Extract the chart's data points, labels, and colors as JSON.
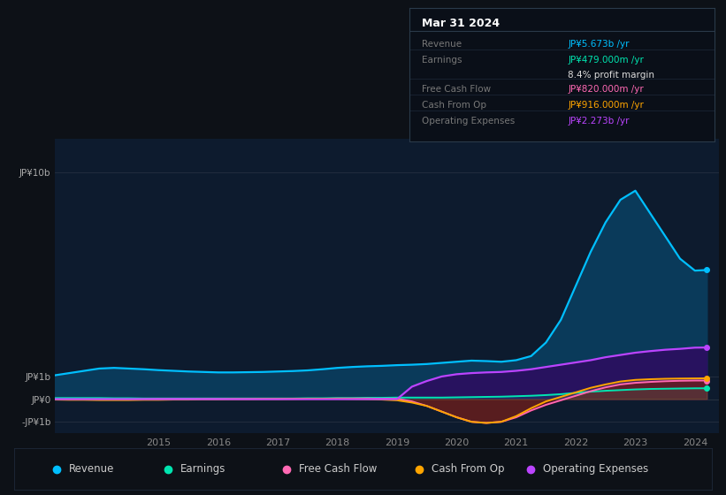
{
  "bg_color": "#0d1117",
  "plot_bg_color": "#0d1b2e",
  "x_years": [
    2013.25,
    2013.5,
    2013.75,
    2014,
    2014.25,
    2014.5,
    2014.75,
    2015,
    2015.25,
    2015.5,
    2015.75,
    2016,
    2016.25,
    2016.5,
    2016.75,
    2017,
    2017.25,
    2017.5,
    2017.75,
    2018,
    2018.25,
    2018.5,
    2018.75,
    2019,
    2019.25,
    2019.5,
    2019.75,
    2020,
    2020.25,
    2020.5,
    2020.75,
    2021,
    2021.25,
    2021.5,
    2021.75,
    2022,
    2022.25,
    2022.5,
    2022.75,
    2023,
    2023.25,
    2023.5,
    2023.75,
    2024,
    2024.2
  ],
  "revenue": [
    1.05,
    1.15,
    1.25,
    1.35,
    1.38,
    1.35,
    1.32,
    1.28,
    1.25,
    1.22,
    1.2,
    1.18,
    1.18,
    1.19,
    1.2,
    1.22,
    1.24,
    1.27,
    1.32,
    1.38,
    1.42,
    1.45,
    1.47,
    1.5,
    1.52,
    1.55,
    1.6,
    1.65,
    1.7,
    1.68,
    1.65,
    1.72,
    1.9,
    2.5,
    3.5,
    5.0,
    6.5,
    7.8,
    8.8,
    9.2,
    8.2,
    7.2,
    6.2,
    5.673,
    5.7
  ],
  "earnings": [
    0.05,
    0.05,
    0.05,
    0.05,
    0.04,
    0.04,
    0.03,
    0.03,
    0.03,
    0.03,
    0.03,
    0.03,
    0.03,
    0.03,
    0.03,
    0.03,
    0.03,
    0.04,
    0.04,
    0.05,
    0.05,
    0.06,
    0.06,
    0.07,
    0.07,
    0.07,
    0.07,
    0.08,
    0.09,
    0.1,
    0.11,
    0.13,
    0.15,
    0.18,
    0.22,
    0.28,
    0.33,
    0.37,
    0.4,
    0.43,
    0.45,
    0.46,
    0.47,
    0.479,
    0.48
  ],
  "free_cash_flow": [
    -0.01,
    -0.01,
    -0.01,
    -0.01,
    -0.01,
    -0.01,
    0.0,
    0.01,
    0.01,
    0.01,
    0.01,
    0.01,
    0.01,
    0.01,
    0.01,
    0.01,
    0.02,
    0.02,
    0.02,
    0.03,
    0.03,
    0.03,
    0.02,
    0.02,
    -0.1,
    -0.3,
    -0.55,
    -0.8,
    -1.0,
    -1.05,
    -1.0,
    -0.8,
    -0.5,
    -0.25,
    -0.05,
    0.15,
    0.35,
    0.52,
    0.65,
    0.72,
    0.76,
    0.79,
    0.81,
    0.82,
    0.82
  ],
  "cash_from_op": [
    -0.02,
    -0.03,
    -0.03,
    -0.04,
    -0.04,
    -0.04,
    -0.03,
    -0.03,
    -0.02,
    -0.02,
    -0.01,
    -0.01,
    0.0,
    0.0,
    0.01,
    0.01,
    0.01,
    0.02,
    0.02,
    0.02,
    0.01,
    0.0,
    -0.02,
    -0.05,
    -0.15,
    -0.3,
    -0.55,
    -0.8,
    -1.0,
    -1.05,
    -1.0,
    -0.75,
    -0.4,
    -0.1,
    0.1,
    0.3,
    0.5,
    0.65,
    0.78,
    0.85,
    0.88,
    0.9,
    0.91,
    0.916,
    0.92
  ],
  "operating_expenses": [
    0.0,
    0.0,
    0.0,
    0.0,
    0.0,
    0.0,
    0.0,
    0.0,
    0.0,
    0.0,
    0.0,
    0.0,
    0.0,
    0.0,
    0.0,
    0.0,
    0.0,
    0.0,
    0.0,
    0.0,
    0.0,
    0.0,
    0.0,
    0.0,
    0.55,
    0.8,
    1.0,
    1.1,
    1.15,
    1.18,
    1.2,
    1.25,
    1.32,
    1.42,
    1.52,
    1.62,
    1.72,
    1.85,
    1.95,
    2.05,
    2.12,
    2.18,
    2.22,
    2.273,
    2.28
  ],
  "revenue_color": "#00bfff",
  "revenue_fill": "#0a3a5a",
  "earnings_color": "#00e5b0",
  "free_cash_flow_color": "#ff69b4",
  "free_cash_flow_fill": "#5a0a20",
  "cash_from_op_color": "#ffa500",
  "operating_expenses_color": "#bb44ff",
  "operating_expenses_fill": "#2a1060",
  "ytick_labels": [
    "JP¥10b",
    "JP¥1b",
    "JP¥0",
    "-JP¥1b"
  ],
  "ytick_vals": [
    10,
    1,
    0,
    -1
  ],
  "xtick_labels": [
    "2015",
    "2016",
    "2017",
    "2018",
    "2019",
    "2020",
    "2021",
    "2022",
    "2023",
    "2024"
  ],
  "xtick_vals": [
    2015,
    2016,
    2017,
    2018,
    2019,
    2020,
    2021,
    2022,
    2023,
    2024
  ],
  "tooltip_title": "Mar 31 2024",
  "tooltip_items": [
    {
      "label": "Revenue",
      "value": "JP¥5.673b /yr",
      "value_color": "#00bfff"
    },
    {
      "label": "Earnings",
      "value": "JP¥479.000m /yr",
      "value_color": "#00e5b0"
    },
    {
      "label": "",
      "value": "8.4% profit margin",
      "value_color": "#dddddd"
    },
    {
      "label": "Free Cash Flow",
      "value": "JP¥820.000m /yr",
      "value_color": "#ff69b4"
    },
    {
      "label": "Cash From Op",
      "value": "JP¥916.000m /yr",
      "value_color": "#ffa500"
    },
    {
      "label": "Operating Expenses",
      "value": "JP¥2.273b /yr",
      "value_color": "#bb44ff"
    }
  ],
  "legend_items": [
    {
      "label": "Revenue",
      "color": "#00bfff"
    },
    {
      "label": "Earnings",
      "color": "#00e5b0"
    },
    {
      "label": "Free Cash Flow",
      "color": "#ff69b4"
    },
    {
      "label": "Cash From Op",
      "color": "#ffa500"
    },
    {
      "label": "Operating Expenses",
      "color": "#bb44ff"
    }
  ]
}
